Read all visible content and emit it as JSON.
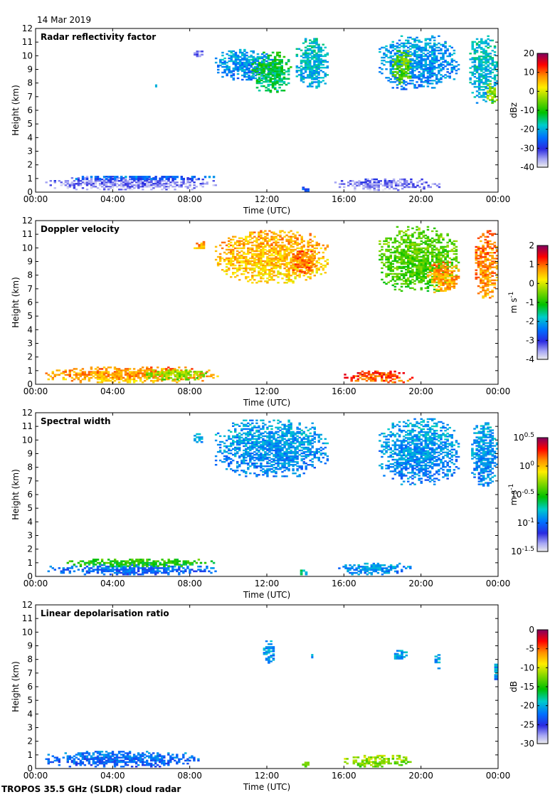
{
  "date_label": "14 Mar 2019",
  "footer": "TROPOS 35.5 GHz (SLDR) cloud radar",
  "chart_data": [
    {
      "type": "heatmap",
      "title": "Radar reflectivity factor",
      "xlabel": "Time (UTC)",
      "ylabel": "Height (km)",
      "x_ticks": [
        "00:00",
        "04:00",
        "08:00",
        "12:00",
        "16:00",
        "20:00",
        "00:00"
      ],
      "xlim_hours": [
        0,
        24
      ],
      "ylim_km": [
        0,
        12
      ],
      "y_ticks": [
        "0",
        "1",
        "2",
        "3",
        "4",
        "5",
        "6",
        "7",
        "8",
        "9",
        "10",
        "11",
        "12"
      ],
      "colorbar": {
        "unit": "dBz",
        "range": [
          -40,
          20
        ],
        "ticks": [
          "20",
          "10",
          "0",
          "-10",
          "-20",
          "-30",
          "-40"
        ]
      },
      "regions": [
        {
          "t0": 0.5,
          "t1": 9.4,
          "h0": 0.15,
          "h1": 1.2,
          "level": 0.1
        },
        {
          "t0": 1.5,
          "t1": 9.3,
          "h0": 0.9,
          "h1": 1.2,
          "level": 0.25
        },
        {
          "t0": 6.2,
          "t1": 6.3,
          "h0": 7.7,
          "h1": 7.9,
          "level": 0.3
        },
        {
          "t0": 8.2,
          "t1": 8.7,
          "h0": 9.8,
          "h1": 10.5,
          "level": 0.1
        },
        {
          "t0": 9.3,
          "t1": 12.5,
          "h0": 8.2,
          "h1": 10.5,
          "level": 0.3
        },
        {
          "t0": 11.2,
          "t1": 13.3,
          "h0": 7.3,
          "h1": 10.3,
          "level": 0.45
        },
        {
          "t0": 13.5,
          "t1": 15.2,
          "h0": 7.6,
          "h1": 11.3,
          "level": 0.35
        },
        {
          "t0": 13.7,
          "t1": 14.2,
          "h0": 0.05,
          "h1": 0.4,
          "level": 0.2
        },
        {
          "t0": 15.5,
          "t1": 21.0,
          "h0": 0.1,
          "h1": 1.0,
          "level": 0.1
        },
        {
          "t0": 17.8,
          "t1": 22.0,
          "h0": 7.5,
          "h1": 11.5,
          "level": 0.3
        },
        {
          "t0": 18.5,
          "t1": 19.5,
          "h0": 7.9,
          "h1": 10.5,
          "level": 0.55
        },
        {
          "t0": 22.5,
          "t1": 24.0,
          "h0": 6.5,
          "h1": 11.5,
          "level": 0.35
        },
        {
          "t0": 23.4,
          "t1": 24.0,
          "h0": 6.5,
          "h1": 8.0,
          "level": 0.6
        }
      ]
    },
    {
      "type": "heatmap",
      "title": "Doppler velocity",
      "xlabel": "Time (UTC)",
      "ylabel": "Height (km)",
      "x_ticks": [
        "00:00",
        "04:00",
        "08:00",
        "12:00",
        "16:00",
        "20:00",
        "00:00"
      ],
      "xlim_hours": [
        0,
        24
      ],
      "ylim_km": [
        0,
        12
      ],
      "y_ticks": [
        "0",
        "1",
        "2",
        "3",
        "4",
        "5",
        "6",
        "7",
        "8",
        "9",
        "10",
        "11",
        "12"
      ],
      "colorbar": {
        "unit": "m s-1",
        "range": [
          -4,
          2
        ],
        "ticks": [
          "2",
          "1",
          "0",
          "-1",
          "-2",
          "-3",
          "-4"
        ]
      },
      "regions": [
        {
          "t0": 0.5,
          "t1": 9.5,
          "h0": 0.1,
          "h1": 1.3,
          "level": 0.78
        },
        {
          "t0": 5.5,
          "t1": 9.0,
          "h0": 0.3,
          "h1": 1.1,
          "level": 0.6
        },
        {
          "t0": 8.2,
          "t1": 8.9,
          "h0": 9.7,
          "h1": 10.5,
          "level": 0.78
        },
        {
          "t0": 9.3,
          "t1": 15.2,
          "h0": 7.4,
          "h1": 11.3,
          "level": 0.75
        },
        {
          "t0": 13.2,
          "t1": 14.6,
          "h0": 8.0,
          "h1": 9.8,
          "level": 0.82
        },
        {
          "t0": 16.0,
          "t1": 19.6,
          "h0": 0.1,
          "h1": 1.0,
          "level": 0.85
        },
        {
          "t0": 17.8,
          "t1": 22.0,
          "h0": 6.8,
          "h1": 11.6,
          "level": 0.55
        },
        {
          "t0": 20.3,
          "t1": 22.0,
          "h0": 6.7,
          "h1": 9.0,
          "level": 0.78
        },
        {
          "t0": 22.8,
          "t1": 24.0,
          "h0": 6.3,
          "h1": 11.3,
          "level": 0.8
        }
      ]
    },
    {
      "type": "heatmap",
      "title": "Spectral width",
      "xlabel": "Time (UTC)",
      "ylabel": "Height (km)",
      "x_ticks": [
        "00:00",
        "04:00",
        "08:00",
        "12:00",
        "16:00",
        "20:00",
        "00:00"
      ],
      "xlim_hours": [
        0,
        24
      ],
      "ylim_km": [
        0,
        12
      ],
      "y_ticks": [
        "0",
        "1",
        "2",
        "3",
        "4",
        "5",
        "6",
        "7",
        "8",
        "9",
        "10",
        "11",
        "12"
      ],
      "colorbar": {
        "unit": "m s-1",
        "range_log10": [
          -1.5,
          0.5
        ],
        "ticks": [
          "10^0.5",
          "10^0",
          "10^-0.5",
          "10^-1",
          "10^-1.5"
        ]
      },
      "regions": [
        {
          "t0": 0.5,
          "t1": 9.5,
          "h0": 0.1,
          "h1": 0.9,
          "level": 0.25
        },
        {
          "t0": 1.5,
          "t1": 9.3,
          "h0": 0.7,
          "h1": 1.3,
          "level": 0.5
        },
        {
          "t0": 6.2,
          "t1": 6.3,
          "h0": 7.7,
          "h1": 7.9,
          "level": 0.3
        },
        {
          "t0": 8.2,
          "t1": 8.8,
          "h0": 9.8,
          "h1": 10.5,
          "level": 0.3
        },
        {
          "t0": 9.3,
          "t1": 15.2,
          "h0": 7.3,
          "h1": 11.5,
          "level": 0.3
        },
        {
          "t0": 13.6,
          "t1": 14.1,
          "h0": 0.1,
          "h1": 0.5,
          "level": 0.4
        },
        {
          "t0": 15.7,
          "t1": 19.5,
          "h0": 0.1,
          "h1": 1.0,
          "level": 0.3
        },
        {
          "t0": 17.8,
          "t1": 22.0,
          "h0": 6.7,
          "h1": 11.6,
          "level": 0.3
        },
        {
          "t0": 22.6,
          "t1": 24.0,
          "h0": 6.5,
          "h1": 11.3,
          "level": 0.3
        }
      ]
    },
    {
      "type": "heatmap",
      "title": "Linear depolarisation ratio",
      "xlabel": "Time (UTC)",
      "ylabel": "Height (km)",
      "x_ticks": [
        "00:00",
        "04:00",
        "08:00",
        "12:00",
        "16:00",
        "20:00",
        "00:00"
      ],
      "xlim_hours": [
        0,
        24
      ],
      "ylim_km": [
        0,
        12
      ],
      "y_ticks": [
        "0",
        "1",
        "2",
        "3",
        "4",
        "5",
        "6",
        "7",
        "8",
        "9",
        "10",
        "11",
        "12"
      ],
      "colorbar": {
        "unit": "dB",
        "range": [
          -30,
          0
        ],
        "ticks": [
          "0",
          "-5",
          "-10",
          "-15",
          "-20",
          "-25",
          "-30"
        ]
      },
      "regions": [
        {
          "t0": 0.5,
          "t1": 8.5,
          "h0": 0.1,
          "h1": 1.3,
          "level": 0.25
        },
        {
          "t0": 11.8,
          "t1": 12.4,
          "h0": 7.6,
          "h1": 9.5,
          "level": 0.3
        },
        {
          "t0": 14.3,
          "t1": 14.4,
          "h0": 8.1,
          "h1": 8.4,
          "level": 0.3
        },
        {
          "t0": 13.7,
          "t1": 14.2,
          "h0": 0.1,
          "h1": 0.5,
          "level": 0.55
        },
        {
          "t0": 16.0,
          "t1": 19.5,
          "h0": 0.1,
          "h1": 1.0,
          "level": 0.6
        },
        {
          "t0": 18.6,
          "t1": 19.3,
          "h0": 7.9,
          "h1": 8.7,
          "level": 0.3
        },
        {
          "t0": 20.7,
          "t1": 21.0,
          "h0": 7.3,
          "h1": 8.5,
          "level": 0.3
        },
        {
          "t0": 23.8,
          "t1": 24.0,
          "h0": 6.5,
          "h1": 7.8,
          "level": 0.3
        }
      ]
    }
  ]
}
